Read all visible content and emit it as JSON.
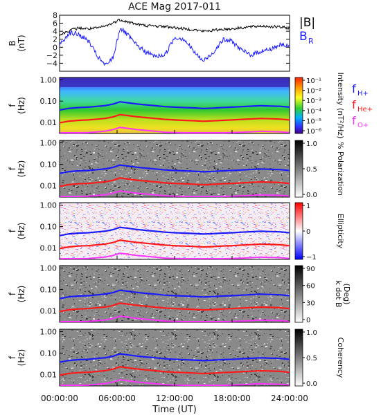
{
  "title": "ACE Mag 2017-011",
  "colors": {
    "btotal": "#000000",
    "br": "#1a1aff",
    "fH": "#1a1aff",
    "fHe": "#ff1a1a",
    "fO": "#ff33ff"
  },
  "x_axis": {
    "label": "Time (UT)",
    "ticks": [
      "00:00:00",
      "06:00:00",
      "12:00:00",
      "18:00:00",
      "24:00:00"
    ],
    "tick_hours": [
      0,
      6,
      12,
      18,
      24
    ]
  },
  "chart_data": [
    {
      "type": "line",
      "panel": "magnetic-field",
      "ylabel": "B",
      "yunit": "(nT)",
      "ylim": [
        -6,
        8
      ],
      "yticks": [
        -4,
        -2,
        0,
        2,
        4,
        6,
        8
      ],
      "ytick_labels": [
        "−4",
        "−2",
        "0",
        "2",
        "4",
        "6",
        "8"
      ],
      "x_hours": [
        0,
        1,
        2,
        3,
        4,
        4.8,
        5.6,
        6.3,
        7,
        8,
        9,
        10,
        11,
        12,
        13,
        14,
        15,
        16,
        17,
        18,
        19,
        20,
        21,
        22,
        23,
        24
      ],
      "series": [
        {
          "name": "|B|",
          "values": [
            3.0,
            4.2,
            4.8,
            4.6,
            4.8,
            5.3,
            6.1,
            6.9,
            6.4,
            5.8,
            5.4,
            5.3,
            5.2,
            4.9,
            4.6,
            4.4,
            4.0,
            4.2,
            4.5,
            4.6,
            4.9,
            5.1,
            5.3,
            5.2,
            5.0,
            4.8
          ]
        },
        {
          "name": "B",
          "subscript": "R",
          "values": [
            0.5,
            3.6,
            3.2,
            1.6,
            -2.5,
            -4.6,
            -2.5,
            4.8,
            3.3,
            0.6,
            -1.2,
            -2.3,
            -1.9,
            2.4,
            2.1,
            -1.1,
            -3.5,
            -1.4,
            1.8,
            1.5,
            -0.8,
            -1.9,
            -1.0,
            -0.5,
            0.6,
            0.2
          ]
        }
      ]
    },
    {
      "type": "heatmap",
      "panel": "intensity",
      "ylabel": "f",
      "yunit": "(Hz)",
      "colorbar_label": "Intensity (nT²/Hz)",
      "colorbar_ticks": [
        "10⁻¹",
        "10⁻²",
        "10⁻³",
        "10⁻⁴",
        "10⁻⁵",
        "10⁻⁶"
      ],
      "colormap": "rainbow"
    },
    {
      "type": "heatmap",
      "panel": "polarization",
      "ylabel": "f",
      "yunit": "(Hz)",
      "colorbar_label": "% Polarization",
      "colorbar_ticks": [
        "1.0",
        "0.5",
        "0.0"
      ],
      "colormap": "grayscale"
    },
    {
      "type": "heatmap",
      "panel": "ellipticity",
      "ylabel": "f",
      "yunit": "(Hz)",
      "colorbar_label": "Ellipticity",
      "colorbar_ticks": [
        "1",
        "0",
        "−1"
      ],
      "colormap": "blue-white-red"
    },
    {
      "type": "heatmap",
      "panel": "wave-normal-angle",
      "ylabel": "f",
      "yunit": "(Hz)",
      "colorbar_label": "k dot B",
      "colorbar_unit": "(Deg)",
      "colorbar_ticks": [
        "90",
        "60",
        "30",
        "0"
      ],
      "colormap": "grayscale"
    },
    {
      "type": "heatmap",
      "panel": "coherency",
      "ylabel": "f",
      "yunit": "(Hz)",
      "colorbar_label": "Coherency",
      "colorbar_ticks": [
        "1.0",
        "0.5",
        "0.0"
      ],
      "colormap": "grayscale"
    }
  ],
  "spectrogram": {
    "ylim_hz": [
      0.003,
      1.3
    ],
    "yscale": "log",
    "yticks_hz": [
      1.0,
      0.1,
      0.01
    ],
    "ytick_labels": [
      "1.00",
      "0.10",
      "0.01"
    ],
    "gyrofrequency_lines": {
      "x_hours": [
        0,
        1,
        2,
        3,
        4,
        4.8,
        5.6,
        6.3,
        7,
        8,
        9,
        10,
        11,
        12,
        13,
        14,
        15,
        16,
        17,
        18,
        19,
        20,
        21,
        22,
        23,
        24
      ],
      "series": [
        {
          "name": "f",
          "subscript": "H+",
          "values_hz": [
            0.038,
            0.046,
            0.05,
            0.052,
            0.057,
            0.062,
            0.073,
            0.093,
            0.085,
            0.074,
            0.067,
            0.061,
            0.055,
            0.052,
            0.05,
            0.048,
            0.045,
            0.047,
            0.05,
            0.052,
            0.055,
            0.058,
            0.061,
            0.059,
            0.057,
            0.052
          ]
        },
        {
          "name": "f",
          "subscript": "He+",
          "values_hz": [
            0.0095,
            0.0115,
            0.0125,
            0.013,
            0.0143,
            0.0155,
            0.0183,
            0.0233,
            0.0213,
            0.0185,
            0.0168,
            0.0153,
            0.0138,
            0.013,
            0.0125,
            0.012,
            0.0113,
            0.0118,
            0.0125,
            0.013,
            0.0138,
            0.0145,
            0.0153,
            0.0148,
            0.0143,
            0.013
          ]
        },
        {
          "name": "f",
          "subscript": "O+",
          "values_hz": [
            0.0024,
            0.0029,
            0.0031,
            0.0033,
            0.0036,
            0.0039,
            0.0046,
            0.0058,
            0.0053,
            0.0046,
            0.0042,
            0.0038,
            0.0034,
            0.0033,
            0.0031,
            0.003,
            0.0028,
            0.0029,
            0.0031,
            0.0033,
            0.0034,
            0.0036,
            0.0038,
            0.0037,
            0.0036,
            0.0033
          ]
        }
      ]
    }
  }
}
